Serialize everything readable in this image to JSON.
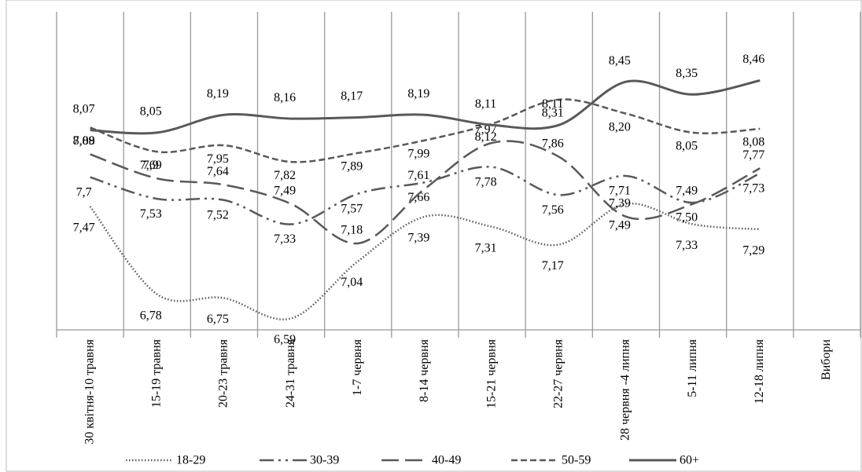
{
  "chart_data": {
    "type": "line",
    "categories": [
      "30 квітня-10 травня",
      "15-19 травня",
      "20-23 травня",
      "24-31 травня",
      "1-7 червня",
      "8-14 червня",
      "15-21 червня",
      "22-27 червня",
      "28 червня -4 липня",
      "5-11 липня",
      "12-18 липня",
      "Вибори"
    ],
    "ylim": [
      6.5,
      9
    ],
    "series": [
      {
        "name": "18-29",
        "color": "#595959",
        "dash": "dotted",
        "values": [
          7.47,
          6.78,
          6.75,
          6.59,
          7.04,
          7.39,
          7.31,
          7.17,
          7.49,
          7.33,
          7.29,
          null
        ],
        "value_labels": [
          "7,47",
          "6,78",
          "6,75",
          "6,59",
          "7,04",
          "7,39",
          "7,31",
          "7,17",
          "7,49",
          "7,33",
          "7,29",
          null
        ]
      },
      {
        "name": "30-39",
        "color": "#595959",
        "dash": "dash-dot",
        "values": [
          7.7,
          7.53,
          7.52,
          7.33,
          7.57,
          7.66,
          7.78,
          7.56,
          7.71,
          7.5,
          7.73,
          null
        ],
        "value_labels": [
          "7,7",
          "7,53",
          "7,52",
          "7,33",
          "7,57",
          "7,66",
          "7,78",
          "7,56",
          "7,71",
          "7,50",
          "7,73",
          null
        ]
      },
      {
        "name": "40-49",
        "color": "#595959",
        "dash": "long-dash",
        "values": [
          7.88,
          7.69,
          7.64,
          7.49,
          7.18,
          7.61,
          7.97,
          7.86,
          7.39,
          7.49,
          7.77,
          null
        ],
        "value_labels": [
          "7,88",
          "7,69",
          "7,64",
          "7,49",
          "7,18",
          "7,61",
          "7,97",
          "7,86",
          "7,39",
          "7,49",
          "7,77",
          null
        ]
      },
      {
        "name": "50-59",
        "color": "#595959",
        "dash": "short-dash",
        "values": [
          8.09,
          7.9,
          7.95,
          7.82,
          7.89,
          7.99,
          8.12,
          8.31,
          8.2,
          8.05,
          8.08,
          null
        ],
        "value_labels": [
          "8,09",
          "7,9",
          "7,95",
          "7,82",
          "7,89",
          "7,99",
          "8,12",
          "8,31",
          "8,20",
          "8,05",
          "8,08",
          null
        ]
      },
      {
        "name": "60+",
        "color": "#595959",
        "dash": "solid",
        "values": [
          8.07,
          8.05,
          8.19,
          8.16,
          8.17,
          8.19,
          8.11,
          8.11,
          8.45,
          8.35,
          8.46,
          null
        ],
        "value_labels": [
          "8,07",
          "8,05",
          "8,19",
          "8,16",
          "8,17",
          "8,19",
          "8,11",
          "8,11",
          "8,45",
          "8,35",
          "8,46",
          null
        ]
      }
    ]
  }
}
